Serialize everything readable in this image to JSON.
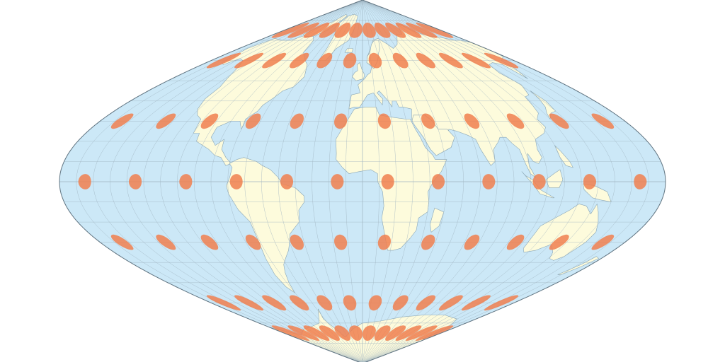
{
  "map": {
    "projection": "sinusoidal",
    "graticule_step_deg": 10,
    "indicatrix_step_deg": 30,
    "indicatrix_latitudes": [
      -60,
      -30,
      0,
      30,
      60
    ],
    "indicatrix_longitudes": [
      -165,
      -135,
      -105,
      -75,
      -45,
      -15,
      15,
      45,
      75,
      105,
      135,
      165
    ],
    "indicatrix_latitudes_dense": [
      -75,
      75
    ],
    "indicatrix_longitudes_dense": [
      -165,
      -135,
      -105,
      -75,
      -45,
      -15,
      15,
      45,
      75,
      105,
      135,
      165
    ]
  },
  "colors": {
    "ocean": "#cce8f7",
    "land": "#fdfbdc",
    "coastline": "#8aa6b5",
    "graticule": "#9fb4c0",
    "outline": "#5f7380",
    "indicatrix": "#f07f4f",
    "indicatrix_opacity": 0.85
  }
}
